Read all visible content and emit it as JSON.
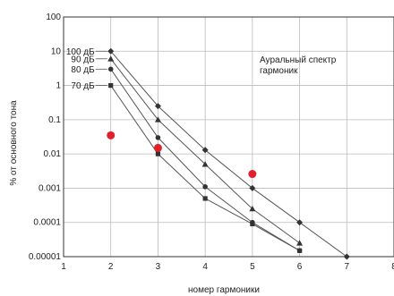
{
  "chart_data": {
    "type": "line",
    "xlabel": "номер гармоники",
    "ylabel": "% от основного тона",
    "xlim": [
      1,
      8
    ],
    "ylim": [
      1e-05,
      100
    ],
    "y_scale": "log",
    "grid": true,
    "x_ticks": [
      1,
      2,
      3,
      4,
      5,
      6,
      7,
      8
    ],
    "x_tick_labels": [
      "1",
      "2",
      "3",
      "4",
      "5",
      "6",
      "7",
      "8"
    ],
    "y_ticks": [
      1e-05,
      0.0001,
      0.001,
      0.01,
      0.1,
      1,
      10,
      100
    ],
    "y_tick_labels": [
      "0.00001",
      "0.0001",
      "0.001",
      "0.01",
      "0.1",
      "1",
      "10",
      "100"
    ],
    "annotation": [
      "Ауральный спектр",
      "гармоник"
    ],
    "series": [
      {
        "name": "100 дБ",
        "marker": "diamond",
        "x": [
          2,
          3,
          4,
          5,
          6,
          7
        ],
        "y": [
          10,
          0.25,
          0.013,
          0.001,
          0.0001,
          1e-05
        ]
      },
      {
        "name": "90 дБ",
        "marker": "triangle",
        "x": [
          2,
          3,
          4,
          5,
          6
        ],
        "y": [
          6,
          0.1,
          0.005,
          0.00025,
          2.5e-05
        ]
      },
      {
        "name": "80 дБ",
        "marker": "circle",
        "x": [
          2,
          3,
          4,
          5,
          6
        ],
        "y": [
          3,
          0.03,
          0.0011,
          0.0001,
          1.5e-05
        ]
      },
      {
        "name": "70 дБ",
        "marker": "square",
        "x": [
          2,
          3,
          4,
          5,
          6
        ],
        "y": [
          1,
          0.01,
          0.0005,
          9e-05,
          1.5e-05
        ]
      },
      {
        "name": "",
        "marker": "red-dot",
        "color": "#e0202a",
        "x": [
          2,
          3,
          5
        ],
        "y": [
          0.035,
          0.015,
          0.0026
        ]
      }
    ]
  }
}
